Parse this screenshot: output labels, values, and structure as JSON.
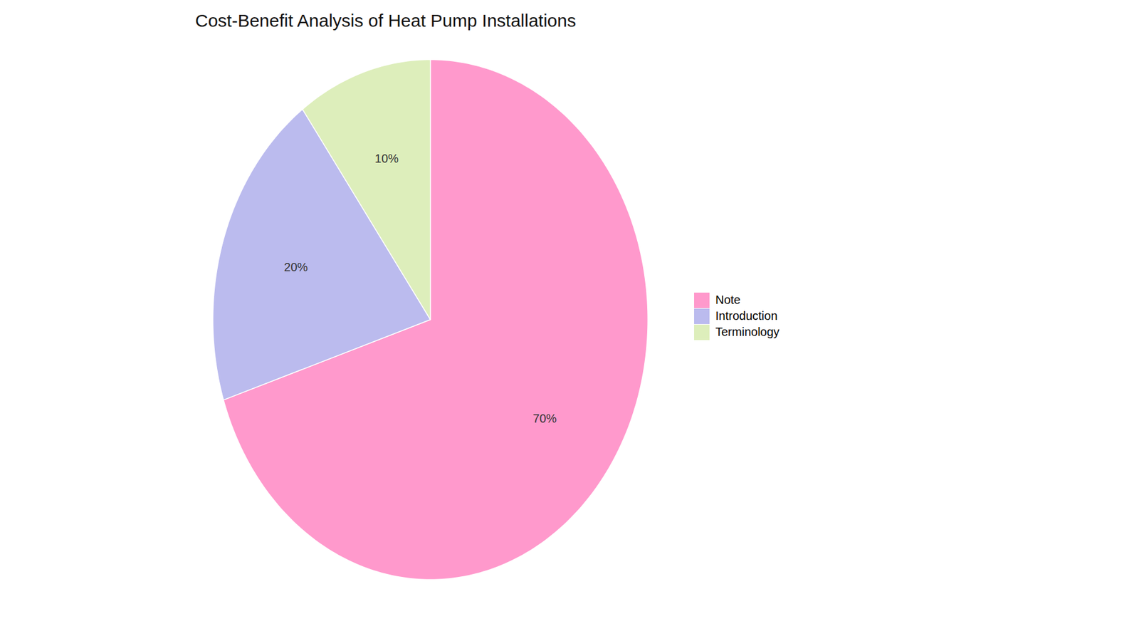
{
  "chart_data": {
    "type": "pie",
    "title": "Cost-Benefit Analysis of Heat Pump Installations",
    "categories": [
      "Note",
      "Introduction",
      "Terminology"
    ],
    "values": [
      70,
      20,
      10
    ],
    "value_labels": [
      "70%",
      "20%",
      "10%"
    ],
    "colors": [
      "#FF99CC",
      "#BBBBEE",
      "#DDEEBB"
    ],
    "data_labels": true,
    "legend": "right"
  }
}
